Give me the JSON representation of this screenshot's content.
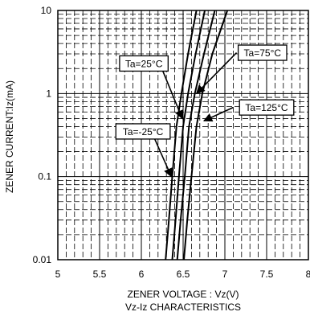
{
  "chart_data": {
    "type": "line",
    "xlabel": "ZENER VOLTAGE : Vz(V)",
    "ylabel": "ZENER CURRENT:Iz(mA)",
    "subtitle": "Vz-Iz CHARACTERISTICS",
    "xlim": [
      5,
      8
    ],
    "ylim": [
      0.01,
      10
    ],
    "yscale": "log",
    "x_ticks": [
      5,
      5.5,
      6,
      6.5,
      7,
      7.5,
      8
    ],
    "x_tick_labels": [
      "5",
      "5.5",
      "6",
      "6.5",
      "7",
      "7.5",
      "8"
    ],
    "y_ticks": [
      0.01,
      0.1,
      1,
      10
    ],
    "y_tick_labels": [
      "0.01",
      "0.1",
      "1",
      "10"
    ],
    "grid": true,
    "series": [
      {
        "name": "Ta=-25°C",
        "label_pos": [
          6.02,
          0.35
        ],
        "points": [
          [
            6.29,
            0.01
          ],
          [
            6.33,
            0.03
          ],
          [
            6.37,
            0.1
          ],
          [
            6.42,
            0.4
          ],
          [
            6.48,
            1
          ],
          [
            6.56,
            3
          ],
          [
            6.66,
            10
          ]
        ]
      },
      {
        "name": "Ta=25°C",
        "label_pos": [
          6.03,
          2.3
        ],
        "points": [
          [
            6.37,
            0.01
          ],
          [
            6.41,
            0.03
          ],
          [
            6.45,
            0.1
          ],
          [
            6.5,
            0.4
          ],
          [
            6.56,
            1
          ],
          [
            6.65,
            3
          ],
          [
            6.76,
            10
          ]
        ]
      },
      {
        "name": "Ta=75°C",
        "label_pos": [
          7.45,
          3.1
        ],
        "points": [
          [
            6.43,
            0.01
          ],
          [
            6.47,
            0.03
          ],
          [
            6.52,
            0.1
          ],
          [
            6.57,
            0.4
          ],
          [
            6.64,
            1
          ],
          [
            6.75,
            3
          ],
          [
            6.88,
            10
          ]
        ]
      },
      {
        "name": "Ta=125°C",
        "label_pos": [
          7.5,
          0.68
        ],
        "points": [
          [
            6.51,
            0.01
          ],
          [
            6.55,
            0.03
          ],
          [
            6.6,
            0.1
          ],
          [
            6.66,
            0.4
          ],
          [
            6.73,
            1
          ],
          [
            6.85,
            3
          ],
          [
            7.03,
            10
          ]
        ]
      }
    ],
    "annotations": [
      {
        "label_pos": [
          6.22,
          2.3
        ],
        "arrow_to": [
          6.49,
          0.5
        ]
      },
      {
        "label_pos": [
          6.12,
          0.35
        ],
        "arrow_to": [
          6.36,
          0.1
        ]
      },
      {
        "label_pos": [
          7.14,
          3.1
        ],
        "arrow_to": [
          6.66,
          1.0
        ]
      },
      {
        "label_pos": [
          7.1,
          0.68
        ],
        "arrow_to": [
          6.75,
          0.47
        ]
      }
    ]
  }
}
